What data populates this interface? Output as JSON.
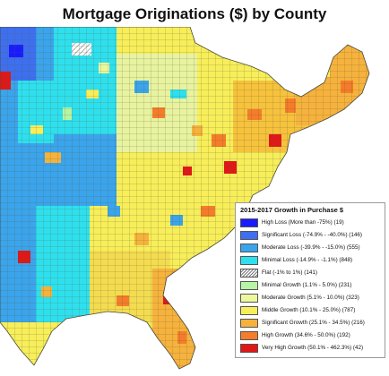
{
  "title": "Mortgage Originations ($) by County",
  "legend": {
    "title": "2015-2017 Growth in Purchase $",
    "items": [
      {
        "label": "High Loss (More than -75%) (19)",
        "color": "#1a1aff"
      },
      {
        "label": "Significant Loss (-74.9% - -40.0%) (146)",
        "color": "#3d6ff0"
      },
      {
        "label": "Moderate Loss (-39.9% - -15.0%) (555)",
        "color": "#3aa4ec"
      },
      {
        "label": "Minimal Loss (-14.9% - -1.1%) (848)",
        "color": "#2ee0ee"
      },
      {
        "label": "Flat (-1% to 1%) (141)",
        "color": "#ffffff",
        "hatch": true
      },
      {
        "label": "Minimal Growth (1.1% - 5.0%) (231)",
        "color": "#b6f5a2"
      },
      {
        "label": "Moderate Growth (5.1% - 10.0%) (323)",
        "color": "#ecf89c"
      },
      {
        "label": "Middle Growth (10.1% - 25.0%) (787)",
        "color": "#f7ee5a"
      },
      {
        "label": "Significant Growth (25.1% - 34.5%) (216)",
        "color": "#f6b23c"
      },
      {
        "label": "High Growth (34.6% - 50.0%) (192)",
        "color": "#f57c2a"
      },
      {
        "label": "Very High Growth (50.1% - 462.3%) (42)",
        "color": "#e11717"
      }
    ]
  },
  "map": {
    "ocean_color": "#ffffff",
    "outline_color": "#5a5a3a",
    "region_colors": {
      "north_central": "#3aa4ec",
      "great_lakes": "#e8f3a0",
      "northeast": "#f7c23c",
      "southeast": "#f7ee5a",
      "south": "#f4dc50",
      "florida": "#f6b23c"
    }
  }
}
